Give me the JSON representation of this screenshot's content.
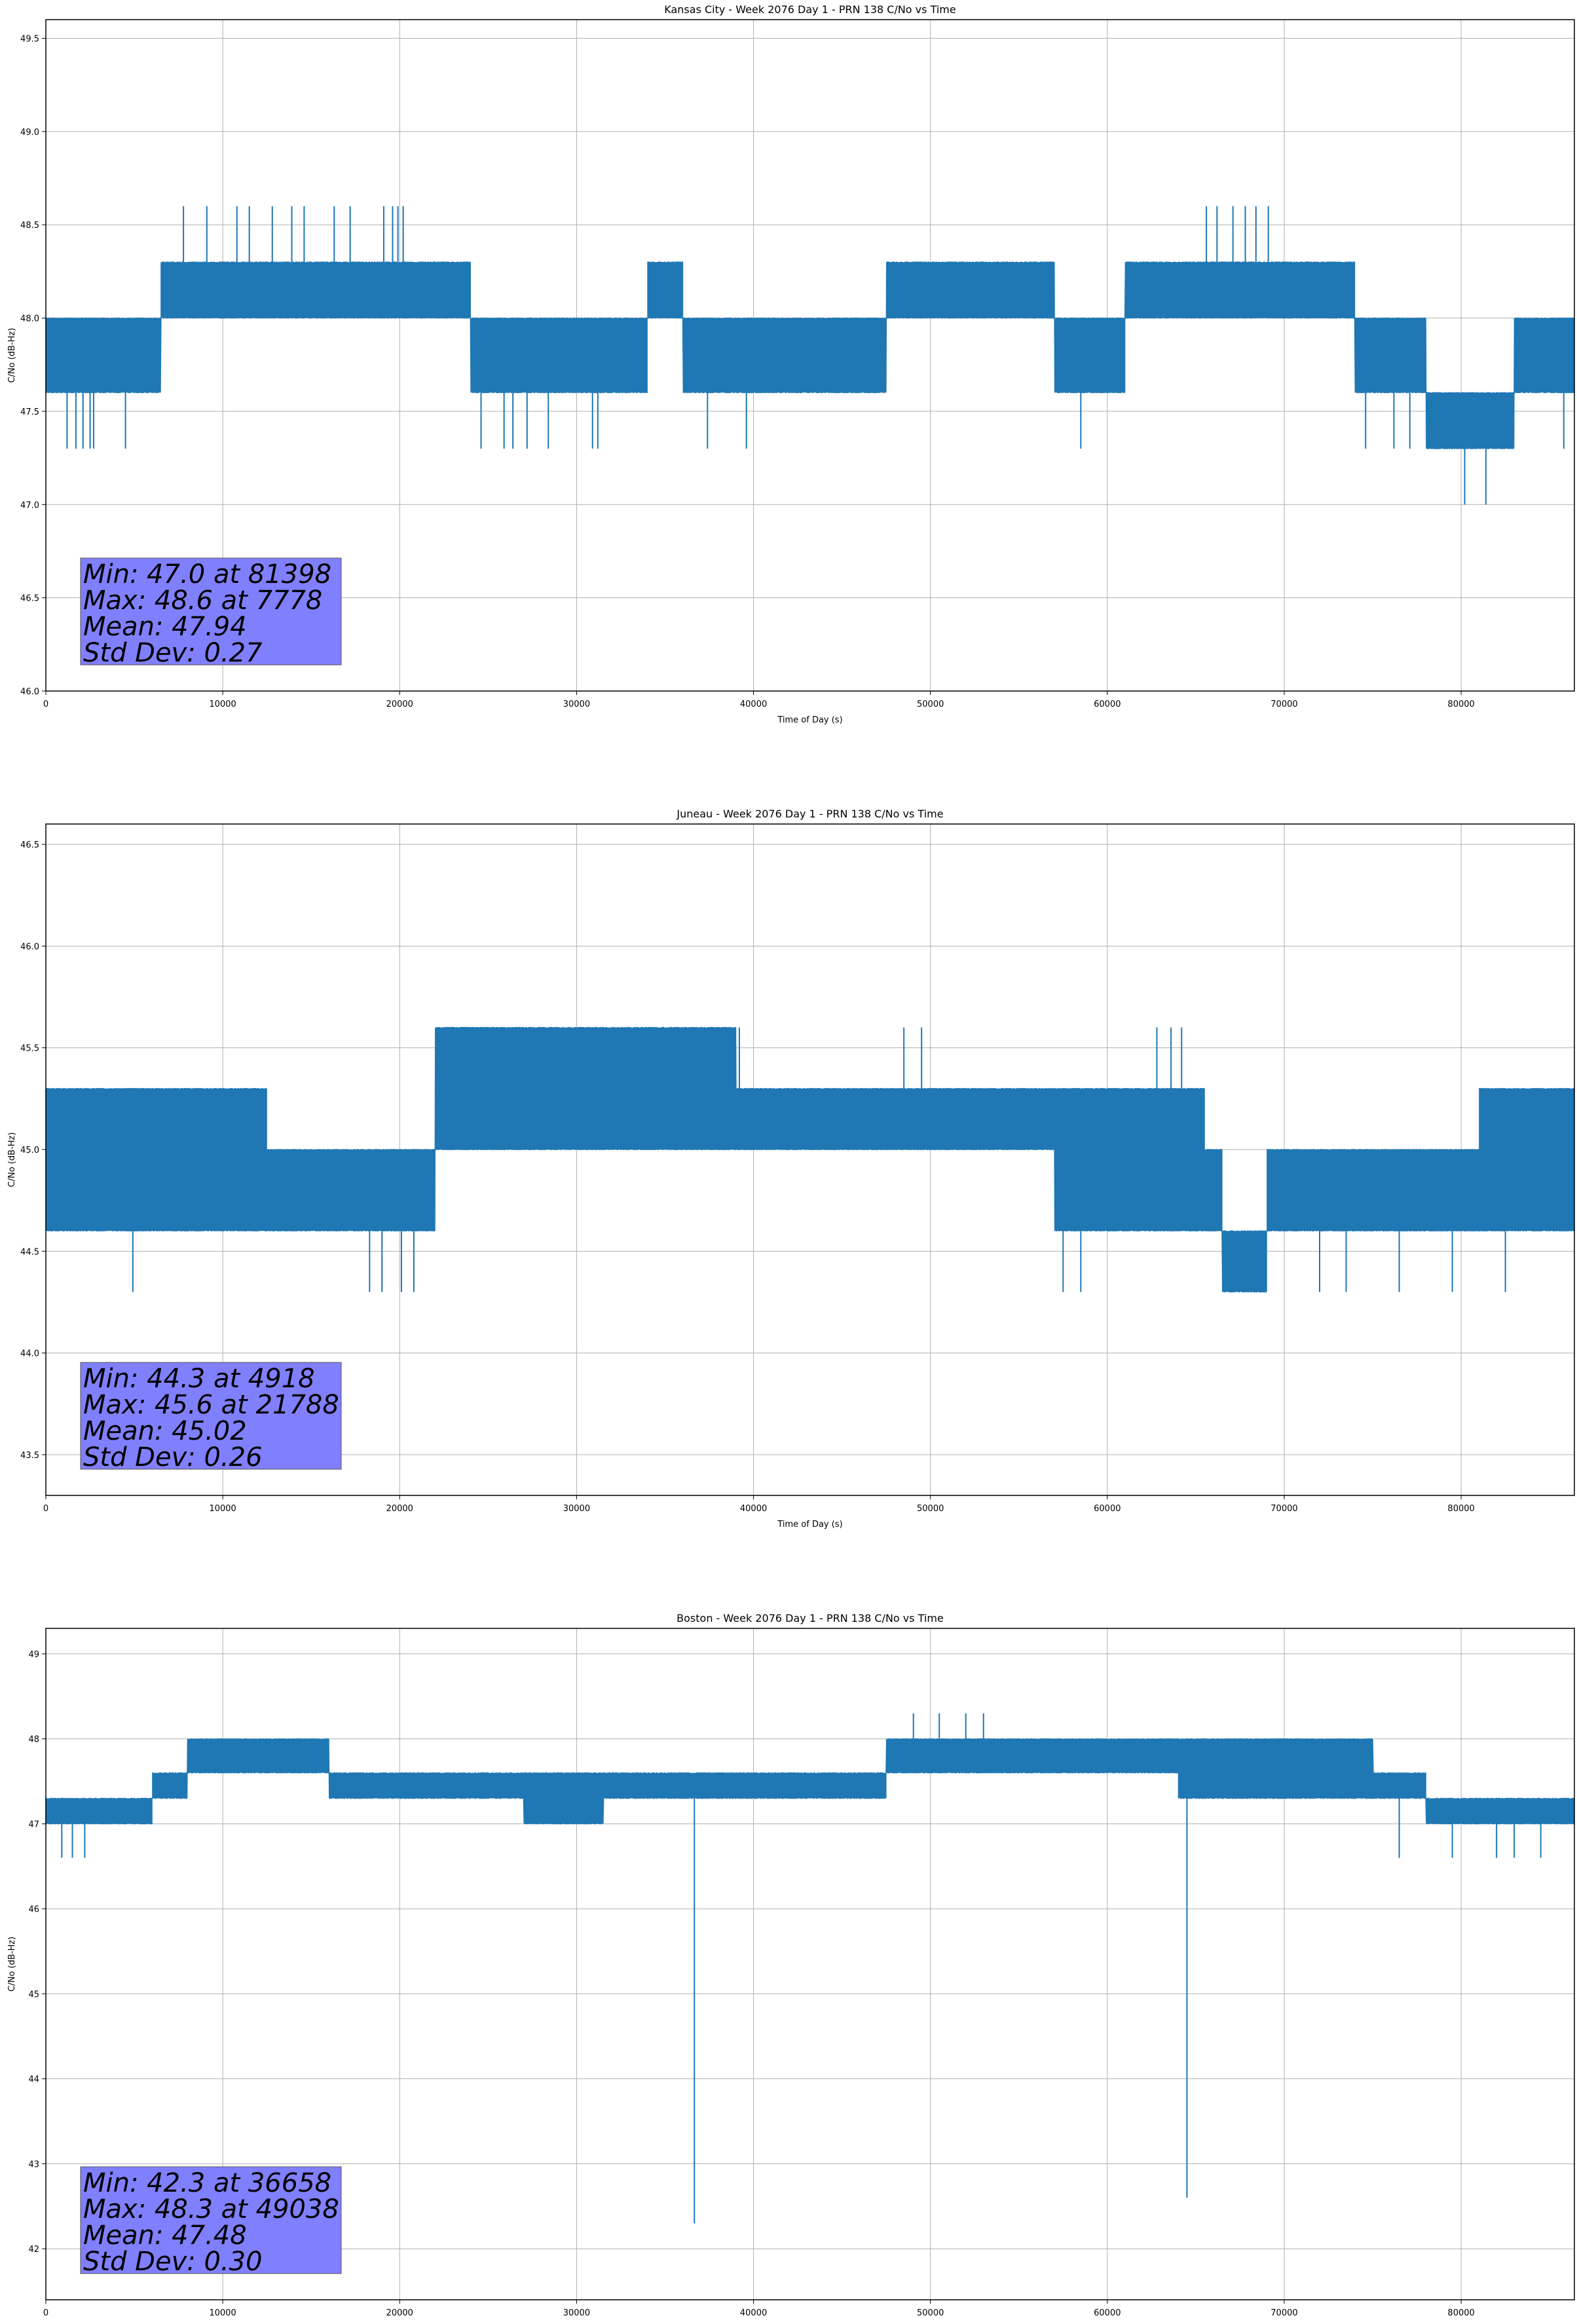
{
  "chart_data": [
    {
      "type": "line",
      "title": "Kansas City - Week 2076 Day 1 - PRN 138 C/No vs Time",
      "xlabel": "Time of Day (s)",
      "ylabel": "C/No (dB-Hz)",
      "xlim": [
        0,
        86400
      ],
      "ylim": [
        46.0,
        49.6
      ],
      "xticks": [
        0,
        10000,
        20000,
        30000,
        40000,
        50000,
        60000,
        70000,
        80000
      ],
      "yticks": [
        46.0,
        46.5,
        47.0,
        47.5,
        48.0,
        48.5,
        49.0,
        49.5
      ],
      "ytick_decimals": 1,
      "grid": true,
      "line_color": "#1f77b4",
      "stats_box_color": "#8080ff",
      "stats": [
        "Min: 47.0 at 81398",
        "Max: 48.6 at 7778",
        "Mean: 47.94",
        "Std Dev: 0.27"
      ],
      "series": [
        {
          "quant": 0.3,
          "min": 47.0,
          "max": 48.6,
          "base": [
            [
              0,
              47.6,
              48.0
            ],
            [
              5500,
              47.6,
              48.0
            ],
            [
              6500,
              48.0,
              48.3
            ],
            [
              23500,
              48.0,
              48.3
            ],
            [
              24000,
              47.6,
              48.0
            ],
            [
              33500,
              47.6,
              48.0
            ],
            [
              34000,
              48.0,
              48.3
            ],
            [
              35500,
              48.0,
              48.3
            ],
            [
              36000,
              47.6,
              48.0
            ],
            [
              46500,
              47.6,
              48.0
            ],
            [
              47500,
              48.0,
              48.3
            ],
            [
              56500,
              48.0,
              48.3
            ],
            [
              57000,
              47.6,
              48.0
            ],
            [
              60500,
              47.6,
              48.0
            ],
            [
              61000,
              48.0,
              48.3
            ],
            [
              73500,
              48.0,
              48.3
            ],
            [
              74000,
              47.6,
              48.0
            ],
            [
              77500,
              47.6,
              48.0
            ],
            [
              78000,
              47.3,
              47.6
            ],
            [
              82500,
              47.3,
              47.6
            ],
            [
              83000,
              47.6,
              48.0
            ],
            [
              86400,
              47.6,
              48.0
            ]
          ],
          "spikes": [
            [
              1200,
              47.3
            ],
            [
              1700,
              47.3
            ],
            [
              2100,
              47.3
            ],
            [
              2500,
              47.3
            ],
            [
              2700,
              47.3
            ],
            [
              4500,
              47.3
            ],
            [
              7778,
              48.6
            ],
            [
              9100,
              48.6
            ],
            [
              10800,
              48.6
            ],
            [
              11500,
              48.6
            ],
            [
              12800,
              48.6
            ],
            [
              13900,
              48.6
            ],
            [
              14600,
              48.6
            ],
            [
              16300,
              48.6
            ],
            [
              17200,
              48.6
            ],
            [
              19100,
              48.6
            ],
            [
              19600,
              48.6
            ],
            [
              19900,
              48.6
            ],
            [
              20200,
              48.6
            ],
            [
              24600,
              47.3
            ],
            [
              25900,
              47.3
            ],
            [
              26400,
              47.3
            ],
            [
              27200,
              47.3
            ],
            [
              28400,
              47.3
            ],
            [
              30900,
              47.3
            ],
            [
              31200,
              47.3
            ],
            [
              37400,
              47.3
            ],
            [
              39600,
              47.3
            ],
            [
              58500,
              47.3
            ],
            [
              65600,
              48.6
            ],
            [
              66200,
              48.6
            ],
            [
              67100,
              48.6
            ],
            [
              67800,
              48.6
            ],
            [
              68400,
              48.6
            ],
            [
              69100,
              48.6
            ],
            [
              74600,
              47.3
            ],
            [
              76200,
              47.3
            ],
            [
              77100,
              47.3
            ],
            [
              79000,
              47.3
            ],
            [
              80200,
              47.0
            ],
            [
              81398,
              47.0
            ],
            [
              85800,
              47.3
            ]
          ]
        }
      ]
    },
    {
      "type": "line",
      "title": "Juneau - Week 2076 Day 1 - PRN 138 C/No vs Time",
      "xlabel": "Time of Day (s)",
      "ylabel": "C/No (dB-Hz)",
      "xlim": [
        0,
        86400
      ],
      "ylim": [
        43.3,
        46.6
      ],
      "xticks": [
        0,
        10000,
        20000,
        30000,
        40000,
        50000,
        60000,
        70000,
        80000
      ],
      "yticks": [
        43.5,
        44.0,
        44.5,
        45.0,
        45.5,
        46.0,
        46.5
      ],
      "ytick_decimals": 1,
      "grid": true,
      "line_color": "#1f77b4",
      "stats_box_color": "#8080ff",
      "stats": [
        "Min: 44.3 at 4918",
        "Max: 45.6 at 21788",
        "Mean: 45.02",
        "Std Dev: 0.26"
      ],
      "series": [
        {
          "quant": 0.3,
          "min": 44.3,
          "max": 45.6,
          "base": [
            [
              0,
              44.6,
              45.3
            ],
            [
              12000,
              44.6,
              45.3
            ],
            [
              12500,
              44.6,
              45.0
            ],
            [
              21500,
              44.6,
              45.0
            ],
            [
              22000,
              45.0,
              45.6
            ],
            [
              39000,
              45.0,
              45.3
            ],
            [
              40000,
              45.0,
              45.3
            ],
            [
              56500,
              45.0,
              45.3
            ],
            [
              57000,
              44.6,
              45.3
            ],
            [
              64500,
              44.6,
              45.3
            ],
            [
              65500,
              44.6,
              45.0
            ],
            [
              66500,
              44.3,
              44.6
            ],
            [
              68500,
              44.3,
              44.6
            ],
            [
              69000,
              44.6,
              45.0
            ],
            [
              80500,
              44.6,
              45.0
            ],
            [
              81000,
              44.6,
              45.3
            ],
            [
              86400,
              44.6,
              45.3
            ]
          ],
          "spikes": [
            [
              4918,
              44.3
            ],
            [
              18300,
              44.3
            ],
            [
              19000,
              44.3
            ],
            [
              20100,
              44.3
            ],
            [
              20800,
              44.3
            ],
            [
              24000,
              45.6
            ],
            [
              26500,
              45.6
            ],
            [
              29000,
              45.6
            ],
            [
              33000,
              45.6
            ],
            [
              35500,
              45.6
            ],
            [
              38000,
              45.6
            ],
            [
              39200,
              45.6
            ],
            [
              48500,
              45.6
            ],
            [
              49500,
              45.6
            ],
            [
              57500,
              44.3
            ],
            [
              58500,
              44.3
            ],
            [
              62800,
              45.6
            ],
            [
              63600,
              45.6
            ],
            [
              64200,
              45.6
            ],
            [
              72000,
              44.3
            ],
            [
              73500,
              44.3
            ],
            [
              76500,
              44.3
            ],
            [
              79500,
              44.3
            ],
            [
              82500,
              44.3
            ]
          ]
        }
      ]
    },
    {
      "type": "line",
      "title": "Boston - Week 2076 Day 1 - PRN 138 C/No vs Time",
      "xlabel": "Time of Day (s)",
      "ylabel": "C/No (dB-Hz)",
      "xlim": [
        0,
        86400
      ],
      "ylim": [
        41.4,
        49.3
      ],
      "xticks": [
        0,
        10000,
        20000,
        30000,
        40000,
        50000,
        60000,
        70000,
        80000
      ],
      "yticks": [
        42,
        43,
        44,
        45,
        46,
        47,
        48,
        49
      ],
      "ytick_decimals": 0,
      "grid": true,
      "line_color": "#1f77b4",
      "stats_box_color": "#8080ff",
      "stats": [
        "Min: 42.3 at 36658",
        "Max: 48.3 at 49038",
        "Mean: 47.48",
        "Std Dev: 0.30"
      ],
      "series": [
        {
          "quant": 0.3,
          "min": 42.3,
          "max": 48.3,
          "base": [
            [
              0,
              47.0,
              47.3
            ],
            [
              5500,
              47.0,
              47.3
            ],
            [
              6000,
              47.3,
              47.6
            ],
            [
              7500,
              47.3,
              47.6
            ],
            [
              8000,
              47.6,
              48.0
            ],
            [
              15500,
              47.6,
              48.0
            ],
            [
              16000,
              47.3,
              47.6
            ],
            [
              26500,
              47.3,
              47.6
            ],
            [
              27000,
              47.0,
              47.6
            ],
            [
              31000,
              47.0,
              47.6
            ],
            [
              31500,
              47.3,
              47.6
            ],
            [
              43500,
              47.3,
              47.6
            ],
            [
              44000,
              47.3,
              47.6
            ],
            [
              47500,
              47.6,
              48.0
            ],
            [
              63500,
              47.6,
              48.0
            ],
            [
              64000,
              47.3,
              48.0
            ],
            [
              75000,
              47.3,
              47.6
            ],
            [
              78000,
              47.0,
              47.3
            ],
            [
              86400,
              47.0,
              47.3
            ]
          ],
          "spikes": [
            [
              900,
              46.6
            ],
            [
              1500,
              46.6
            ],
            [
              2200,
              46.6
            ],
            [
              36658,
              42.3
            ],
            [
              49038,
              48.3
            ],
            [
              50500,
              48.3
            ],
            [
              52000,
              48.3
            ],
            [
              53000,
              48.3
            ],
            [
              64500,
              42.6
            ],
            [
              76500,
              46.6
            ],
            [
              79500,
              46.6
            ],
            [
              82000,
              46.6
            ],
            [
              83000,
              46.6
            ],
            [
              84500,
              46.6
            ]
          ]
        }
      ]
    }
  ]
}
